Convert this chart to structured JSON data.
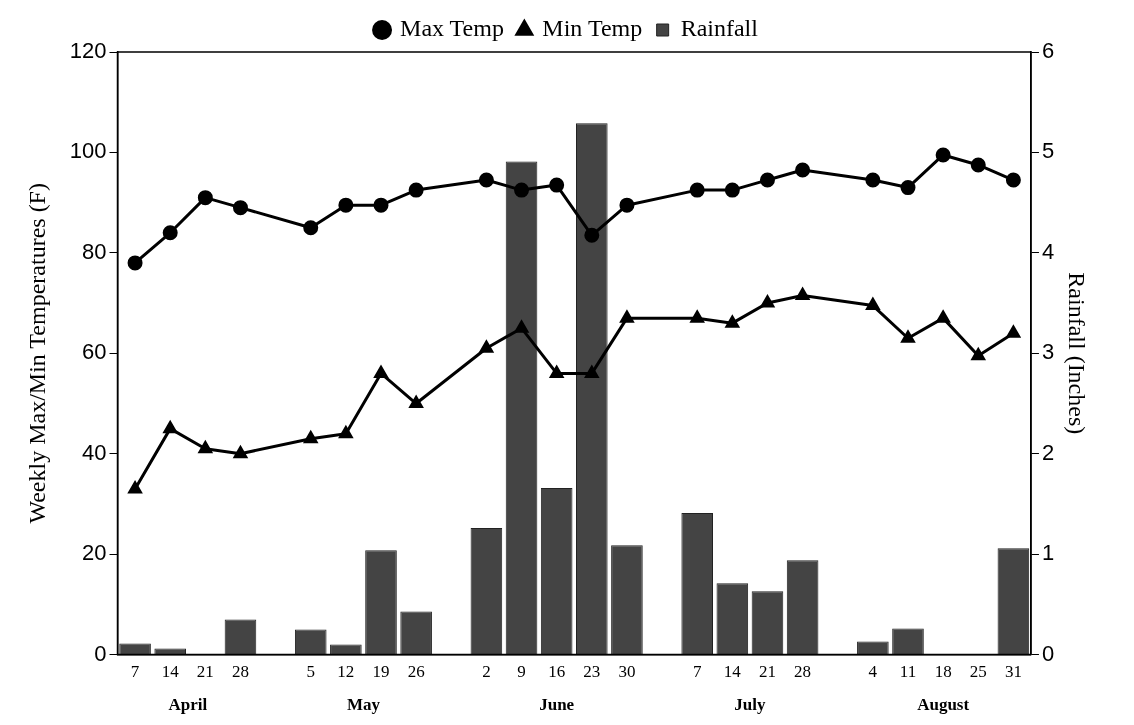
{
  "chart_data": {
    "type": "bar",
    "ylabel": "Weekly Max/Min Temperatures (F)",
    "y2label": "Rainfall (Inches)",
    "categories": [
      "7",
      "14",
      "21",
      "28",
      null,
      "5",
      "12",
      "19",
      "26",
      null,
      "2",
      "9",
      "16",
      "23",
      "30",
      null,
      "7",
      "14",
      "21",
      "28",
      null,
      "4",
      "11",
      "18",
      "25",
      "31"
    ],
    "series": [
      {
        "name": "Max Temp",
        "type": "line",
        "marker": "circle",
        "color": "#000000",
        "values": [
          78,
          84,
          91,
          89,
          null,
          85,
          89.5,
          89.5,
          92.5,
          null,
          94.5,
          92.5,
          93.5,
          83.5,
          89.5,
          null,
          92.5,
          92.5,
          94.5,
          96.5,
          null,
          94.5,
          93,
          99.5,
          97.5,
          94.5
        ]
      },
      {
        "name": "Min Temp",
        "type": "line",
        "marker": "triangle",
        "color": "#000000",
        "values": [
          33,
          45,
          41,
          40,
          null,
          43,
          44,
          56,
          50,
          null,
          61,
          65,
          56,
          56,
          67,
          null,
          67,
          66,
          70,
          71.5,
          null,
          69.5,
          63,
          67,
          59.5,
          64
        ]
      },
      {
        "name": "Rainfall",
        "axis": "y2",
        "color": "#444444",
        "values": [
          0.11,
          0.06,
          0,
          0.35,
          null,
          0.25,
          0.1,
          1.04,
          0.43,
          null,
          1.26,
          4.91,
          1.66,
          5.29,
          1.09,
          null,
          1.41,
          0.71,
          0.63,
          0.94,
          null,
          0.13,
          0.26,
          0,
          0,
          1.06
        ]
      }
    ],
    "ylim": [
      0,
      120
    ],
    "yticks": [
      0,
      20,
      40,
      60,
      80,
      100,
      120
    ],
    "y2lim": [
      0,
      6
    ],
    "y2ticks": [
      0,
      1,
      2,
      3,
      4,
      5,
      6
    ],
    "grid": false,
    "legend": "top",
    "annotations": [
      "April",
      "May",
      "June",
      "July",
      "August"
    ]
  }
}
